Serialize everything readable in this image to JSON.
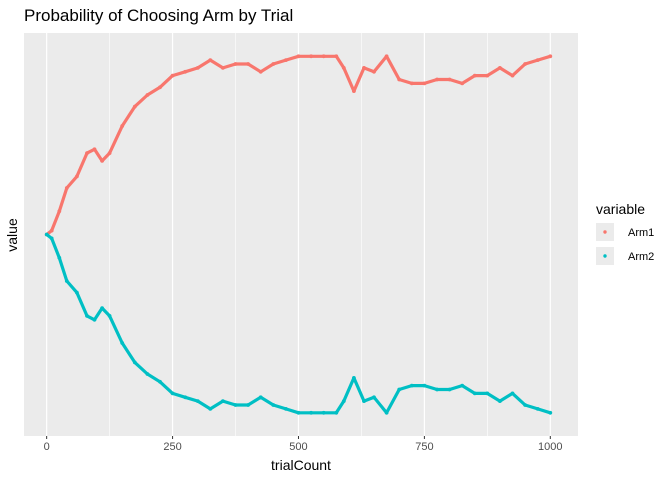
{
  "chart_data": {
    "type": "scatter",
    "title": "Probability of Choosing Arm by Trial",
    "xlabel": "trialCount",
    "ylabel": "value",
    "xlim": [
      -45,
      1055
    ],
    "ylim": [
      0,
      1
    ],
    "x_ticks": [
      0,
      250,
      500,
      750,
      1000
    ],
    "x_tick_labels": [
      "0",
      "250",
      "500",
      "750",
      "1000"
    ],
    "grid": true,
    "legend": {
      "title": "variable",
      "position": "right"
    },
    "series": [
      {
        "name": "Arm1",
        "color": "#F8766D",
        "x": [
          0,
          10,
          25,
          40,
          60,
          80,
          95,
          110,
          125,
          150,
          175,
          200,
          225,
          250,
          275,
          300,
          325,
          350,
          375,
          400,
          425,
          450,
          475,
          500,
          525,
          550,
          575,
          590,
          610,
          630,
          650,
          675,
          700,
          725,
          750,
          775,
          800,
          825,
          850,
          875,
          900,
          925,
          950,
          975,
          1000
        ],
        "y": [
          0.5,
          0.51,
          0.56,
          0.62,
          0.65,
          0.71,
          0.72,
          0.69,
          0.71,
          0.78,
          0.83,
          0.86,
          0.88,
          0.91,
          0.92,
          0.93,
          0.95,
          0.93,
          0.94,
          0.94,
          0.92,
          0.94,
          0.95,
          0.96,
          0.96,
          0.96,
          0.96,
          0.93,
          0.87,
          0.93,
          0.92,
          0.96,
          0.9,
          0.89,
          0.89,
          0.9,
          0.9,
          0.89,
          0.91,
          0.91,
          0.93,
          0.91,
          0.94,
          0.95,
          0.96
        ]
      },
      {
        "name": "Arm2",
        "color": "#00BFC4",
        "x": [
          0,
          10,
          25,
          40,
          60,
          80,
          95,
          110,
          125,
          150,
          175,
          200,
          225,
          250,
          275,
          300,
          325,
          350,
          375,
          400,
          425,
          450,
          475,
          500,
          525,
          550,
          575,
          590,
          610,
          630,
          650,
          675,
          700,
          725,
          750,
          775,
          800,
          825,
          850,
          875,
          900,
          925,
          950,
          975,
          1000
        ],
        "y": [
          0.5,
          0.49,
          0.44,
          0.38,
          0.35,
          0.29,
          0.28,
          0.31,
          0.29,
          0.22,
          0.17,
          0.14,
          0.12,
          0.09,
          0.08,
          0.07,
          0.05,
          0.07,
          0.06,
          0.06,
          0.08,
          0.06,
          0.05,
          0.04,
          0.04,
          0.04,
          0.04,
          0.07,
          0.13,
          0.07,
          0.08,
          0.04,
          0.1,
          0.11,
          0.11,
          0.1,
          0.1,
          0.11,
          0.09,
          0.09,
          0.07,
          0.09,
          0.06,
          0.05,
          0.04
        ]
      }
    ]
  }
}
